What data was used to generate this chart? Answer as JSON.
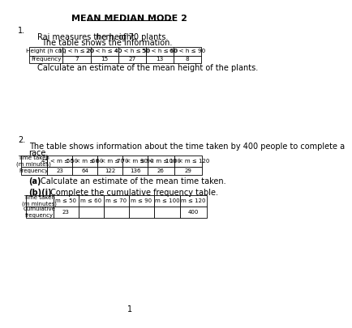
{
  "title": "MEAN MEDIAN MODE 2",
  "q1_intro_1a": "Raj measures the height, ",
  "q1_intro_1b": "h",
  "q1_intro_1c": " cm, of 70 plants.",
  "q1_intro_2": "The table shows the information.",
  "q1_table_headers": [
    "Height (h cm)",
    "10 < h ≤ 20",
    "20 < h ≤ 40",
    "40 < h ≤ 50",
    "50 < h ≤ 60",
    "60 < h ≤ 90"
  ],
  "q1_table_row": [
    "Frequency",
    "7",
    "15",
    "27",
    "13",
    "8"
  ],
  "q1_question": "Calculate an estimate of the mean height of the plants.",
  "q2_number": "2.",
  "q2_intro_1": "The table shows information about the time taken by 400 people to complete a",
  "q2_intro_2": "race.",
  "q2_table_headers": [
    "Time taken\n(m minutes)",
    "45 < m ≤ 50",
    "50 < m ≤ 60",
    "60 < m ≤ 70",
    "70 < m ≤ 90",
    "90 < m ≤ 100",
    "100 < m ≤ 120"
  ],
  "q2_table_row": [
    "Frequency",
    "23",
    "64",
    "122",
    "136",
    "26",
    "29"
  ],
  "q2a_bold": "(a)",
  "q2a_text": "Calculate an estimate of the mean time taken.",
  "q2b_bold": "(b)(i)",
  "q2b_text": " Complete the cumulative frequency table.",
  "q2b_headers": [
    "Time taken\n(m minutes)",
    "m ≤ 50",
    "m ≤ 60",
    "m ≤ 70",
    "m ≤ 90",
    "m ≤ 100",
    "m ≤ 120"
  ],
  "q2b_row": [
    "Cumulative\nfrequency",
    "23",
    "",
    "",
    "",
    "",
    "400"
  ],
  "page_number": "1",
  "background": "#ffffff",
  "text_color": "#000000",
  "font_size_title": 8,
  "font_size_body": 7,
  "font_size_small": 5.5
}
